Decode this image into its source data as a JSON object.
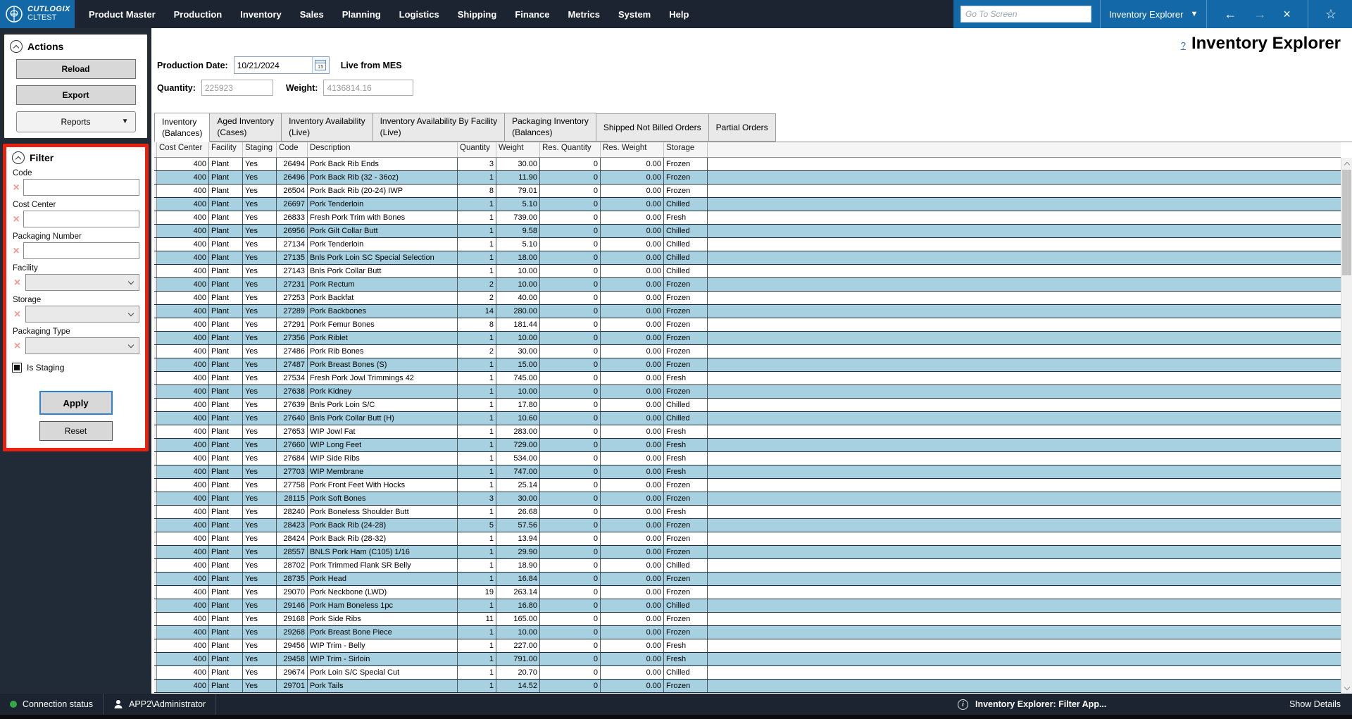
{
  "colors": {
    "accent_blue": "#1368a8",
    "bar_dark": "#1b2430",
    "sidebar_dark": "#212b37",
    "row_alt_blue": "#a7d1e1",
    "filter_highlight_red": "#e8220f",
    "connection_green": "#35a845"
  },
  "app": {
    "brand": "CUTLOGIX",
    "environment": "CLTEST",
    "menu": [
      "Product Master",
      "Production",
      "Inventory",
      "Sales",
      "Planning",
      "Logistics",
      "Shipping",
      "Finance",
      "Metrics",
      "System",
      "Help"
    ],
    "go_to_placeholder": "Go To Screen",
    "screen_selector": "Inventory Explorer",
    "back_arrow": "←",
    "forward_arrow": "→",
    "close_glyph": "×",
    "star_glyph": "☆"
  },
  "actions_panel": {
    "title": "Actions",
    "reload_label": "Reload",
    "export_label": "Export",
    "reports_label": "Reports"
  },
  "filter_panel": {
    "title": "Filter",
    "fields": [
      {
        "label": "Code",
        "type": "text",
        "value": ""
      },
      {
        "label": "Cost Center",
        "type": "text",
        "value": ""
      },
      {
        "label": "Packaging Number",
        "type": "text",
        "value": ""
      },
      {
        "label": "Facility",
        "type": "select",
        "value": ""
      },
      {
        "label": "Storage",
        "type": "select",
        "value": ""
      },
      {
        "label": "Packaging Type",
        "type": "select",
        "value": ""
      }
    ],
    "checkbox_label": "Is Staging",
    "checkbox_state": "indeterminate",
    "apply_label": "Apply",
    "reset_label": "Reset"
  },
  "header": {
    "help_glyph": "?",
    "title": "Inventory Explorer",
    "production_date_label": "Production Date:",
    "production_date": "10/21/2024",
    "calendar_day": "15",
    "live_label": "Live from MES",
    "quantity_label": "Quantity:",
    "quantity": "225923",
    "weight_label": "Weight:",
    "weight": "4136814.16"
  },
  "tabs": [
    {
      "line1": "Inventory",
      "line2": "(Balances)",
      "active": true
    },
    {
      "line1": "Aged Inventory",
      "line2": "(Cases)",
      "active": false
    },
    {
      "line1": "Inventory Availability",
      "line2": "(Live)",
      "active": false
    },
    {
      "line1": "Inventory Availability By Facility",
      "line2": "(Live)",
      "active": false
    },
    {
      "line1": "Packaging Inventory",
      "line2": "(Balances)",
      "active": false
    },
    {
      "line1": "Shipped Not Billed Orders",
      "line2": "",
      "active": false
    },
    {
      "line1": "Partial Orders",
      "line2": "",
      "active": false
    }
  ],
  "grid": {
    "columns": [
      "Cost Center",
      "Facility",
      "Staging",
      "Code",
      "Description",
      "Quantity",
      "Weight",
      "Res. Quantity",
      "Res. Weight",
      "Storage"
    ],
    "rows": [
      [
        "400",
        "Plant",
        "Yes",
        "26494",
        "Pork Back Rib Ends",
        "3",
        "30.00",
        "0",
        "0.00",
        "Frozen"
      ],
      [
        "400",
        "Plant",
        "Yes",
        "26496",
        "Pork Back Rib (32 - 36oz)",
        "1",
        "11.90",
        "0",
        "0.00",
        "Frozen"
      ],
      [
        "400",
        "Plant",
        "Yes",
        "26504",
        "Pork Back Rib (20-24) IWP",
        "8",
        "79.01",
        "0",
        "0.00",
        "Frozen"
      ],
      [
        "400",
        "Plant",
        "Yes",
        "26697",
        "Pork Tenderloin",
        "1",
        "5.10",
        "0",
        "0.00",
        "Chilled"
      ],
      [
        "400",
        "Plant",
        "Yes",
        "26833",
        "Fresh Pork Trim with Bones",
        "1",
        "739.00",
        "0",
        "0.00",
        "Fresh"
      ],
      [
        "400",
        "Plant",
        "Yes",
        "26956",
        "Pork Gilt Collar Butt",
        "1",
        "9.58",
        "0",
        "0.00",
        "Chilled"
      ],
      [
        "400",
        "Plant",
        "Yes",
        "27134",
        "Pork Tenderloin",
        "1",
        "5.10",
        "0",
        "0.00",
        "Chilled"
      ],
      [
        "400",
        "Plant",
        "Yes",
        "27135",
        "Bnls Pork Loin SC Special Selection",
        "1",
        "18.00",
        "0",
        "0.00",
        "Chilled"
      ],
      [
        "400",
        "Plant",
        "Yes",
        "27143",
        "Bnls Pork Collar Butt",
        "1",
        "10.00",
        "0",
        "0.00",
        "Chilled"
      ],
      [
        "400",
        "Plant",
        "Yes",
        "27231",
        "Pork Rectum",
        "2",
        "10.00",
        "0",
        "0.00",
        "Frozen"
      ],
      [
        "400",
        "Plant",
        "Yes",
        "27253",
        "Pork Backfat",
        "2",
        "40.00",
        "0",
        "0.00",
        "Frozen"
      ],
      [
        "400",
        "Plant",
        "Yes",
        "27289",
        "Pork Backbones",
        "14",
        "280.00",
        "0",
        "0.00",
        "Frozen"
      ],
      [
        "400",
        "Plant",
        "Yes",
        "27291",
        "Pork Femur Bones",
        "8",
        "181.44",
        "0",
        "0.00",
        "Frozen"
      ],
      [
        "400",
        "Plant",
        "Yes",
        "27356",
        "Pork Riblet",
        "1",
        "10.00",
        "0",
        "0.00",
        "Frozen"
      ],
      [
        "400",
        "Plant",
        "Yes",
        "27486",
        "Pork Rib Bones",
        "2",
        "30.00",
        "0",
        "0.00",
        "Frozen"
      ],
      [
        "400",
        "Plant",
        "Yes",
        "27487",
        "Pork Breast Bones (S)",
        "1",
        "15.00",
        "0",
        "0.00",
        "Frozen"
      ],
      [
        "400",
        "Plant",
        "Yes",
        "27534",
        "Fresh Pork Jowl Trimmings 42",
        "1",
        "745.00",
        "0",
        "0.00",
        "Fresh"
      ],
      [
        "400",
        "Plant",
        "Yes",
        "27638",
        "Pork Kidney",
        "1",
        "10.00",
        "0",
        "0.00",
        "Frozen"
      ],
      [
        "400",
        "Plant",
        "Yes",
        "27639",
        "Bnls Pork Loin S/C",
        "1",
        "17.80",
        "0",
        "0.00",
        "Chilled"
      ],
      [
        "400",
        "Plant",
        "Yes",
        "27640",
        "Bnls Pork Collar Butt (H)",
        "1",
        "10.60",
        "0",
        "0.00",
        "Chilled"
      ],
      [
        "400",
        "Plant",
        "Yes",
        "27653",
        "WIP Jowl Fat",
        "1",
        "283.00",
        "0",
        "0.00",
        "Fresh"
      ],
      [
        "400",
        "Plant",
        "Yes",
        "27660",
        "WIP Long Feet",
        "1",
        "729.00",
        "0",
        "0.00",
        "Fresh"
      ],
      [
        "400",
        "Plant",
        "Yes",
        "27684",
        "WIP Side Ribs",
        "1",
        "534.00",
        "0",
        "0.00",
        "Fresh"
      ],
      [
        "400",
        "Plant",
        "Yes",
        "27703",
        "WIP Membrane",
        "1",
        "747.00",
        "0",
        "0.00",
        "Fresh"
      ],
      [
        "400",
        "Plant",
        "Yes",
        "27758",
        "Pork Front Feet With Hocks",
        "1",
        "25.14",
        "0",
        "0.00",
        "Frozen"
      ],
      [
        "400",
        "Plant",
        "Yes",
        "28115",
        "Pork Soft Bones",
        "3",
        "30.00",
        "0",
        "0.00",
        "Frozen"
      ],
      [
        "400",
        "Plant",
        "Yes",
        "28240",
        "Pork Boneless Shoulder Butt",
        "1",
        "26.68",
        "0",
        "0.00",
        "Fresh"
      ],
      [
        "400",
        "Plant",
        "Yes",
        "28423",
        "Pork Back Rib (24-28)",
        "5",
        "57.56",
        "0",
        "0.00",
        "Frozen"
      ],
      [
        "400",
        "Plant",
        "Yes",
        "28424",
        "Pork Back Rib (28-32)",
        "1",
        "13.94",
        "0",
        "0.00",
        "Frozen"
      ],
      [
        "400",
        "Plant",
        "Yes",
        "28557",
        "BNLS Pork Ham (C105) 1/16",
        "1",
        "29.90",
        "0",
        "0.00",
        "Frozen"
      ],
      [
        "400",
        "Plant",
        "Yes",
        "28702",
        "Pork Trimmed Flank SR Belly",
        "1",
        "18.90",
        "0",
        "0.00",
        "Chilled"
      ],
      [
        "400",
        "Plant",
        "Yes",
        "28735",
        "Pork Head",
        "1",
        "16.84",
        "0",
        "0.00",
        "Frozen"
      ],
      [
        "400",
        "Plant",
        "Yes",
        "29070",
        "Pork Neckbone (LWD)",
        "19",
        "263.14",
        "0",
        "0.00",
        "Frozen"
      ],
      [
        "400",
        "Plant",
        "Yes",
        "29146",
        "Pork Ham Boneless 1pc",
        "1",
        "16.80",
        "0",
        "0.00",
        "Chilled"
      ],
      [
        "400",
        "Plant",
        "Yes",
        "29168",
        "Pork Side Ribs",
        "11",
        "165.00",
        "0",
        "0.00",
        "Frozen"
      ],
      [
        "400",
        "Plant",
        "Yes",
        "29268",
        "Pork Breast Bone Piece",
        "1",
        "10.00",
        "0",
        "0.00",
        "Frozen"
      ],
      [
        "400",
        "Plant",
        "Yes",
        "29456",
        "WIP Trim - Belly",
        "1",
        "227.00",
        "0",
        "0.00",
        "Fresh"
      ],
      [
        "400",
        "Plant",
        "Yes",
        "29458",
        "WIP Trim - Sirloin",
        "1",
        "791.00",
        "0",
        "0.00",
        "Fresh"
      ],
      [
        "400",
        "Plant",
        "Yes",
        "29674",
        "Pork Loin S/C Special Cut",
        "1",
        "20.70",
        "0",
        "0.00",
        "Chilled"
      ],
      [
        "400",
        "Plant",
        "Yes",
        "29701",
        "Pork Tails",
        "1",
        "14.52",
        "0",
        "0.00",
        "Frozen"
      ]
    ]
  },
  "status_bar": {
    "connection_label": "Connection status",
    "user": "APP2\\Administrator",
    "message": "Inventory Explorer: Filter App...",
    "show_details": "Show Details"
  }
}
